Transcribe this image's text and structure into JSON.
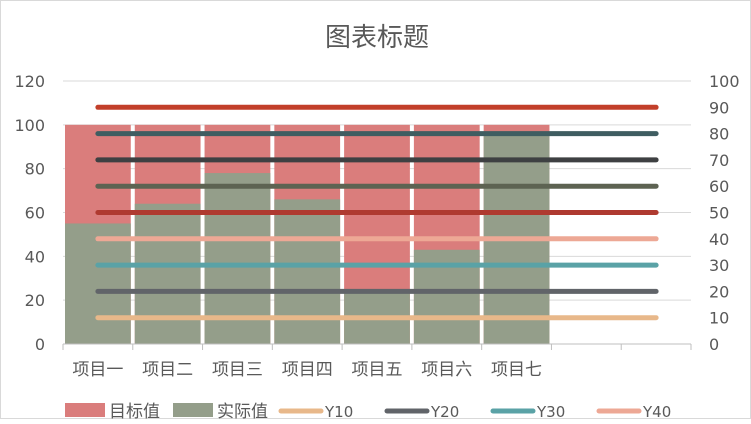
{
  "chart_data": {
    "type": "bar",
    "title": "图表标题",
    "categories": [
      "项目一",
      "项目二",
      "项目三",
      "项目四",
      "项目五",
      "项目六",
      "项目七"
    ],
    "series": [
      {
        "name": "目标值",
        "values": [
          100,
          100,
          100,
          100,
          100,
          100,
          100
        ],
        "color": "#DA7D7C"
      },
      {
        "name": "实际值",
        "values": [
          55,
          64,
          78,
          66,
          25,
          43,
          96
        ],
        "color": "#949E8A"
      }
    ],
    "ref_lines": [
      {
        "name": "Y10",
        "value": 10,
        "color": "#E8B88A"
      },
      {
        "name": "Y20",
        "value": 20,
        "color": "#616469"
      },
      {
        "name": "Y30",
        "value": 30,
        "color": "#5AA2A6"
      },
      {
        "name": "Y40",
        "value": 40,
        "color": "#EDA895"
      },
      {
        "value": 50,
        "color": "#AF3A30"
      },
      {
        "value": 60,
        "color": "#5D6352"
      },
      {
        "value": 70,
        "color": "#3E4042"
      },
      {
        "value": 80,
        "color": "#3F5D61"
      },
      {
        "value": 90,
        "color": "#C23F2A"
      }
    ],
    "y_left": {
      "min": 0,
      "max": 120,
      "ticks": [
        "0",
        "20",
        "40",
        "60",
        "80",
        "100",
        "120"
      ]
    },
    "y_right": {
      "min": 0,
      "max": 100,
      "ticks": [
        "0",
        "10",
        "20",
        "30",
        "40",
        "50",
        "60",
        "70",
        "80",
        "90",
        "100"
      ]
    },
    "legend": {
      "position": "bottom",
      "items": [
        "目标值",
        "实际值",
        "Y10",
        "Y20",
        "Y30",
        "Y40"
      ]
    },
    "grid": true
  }
}
